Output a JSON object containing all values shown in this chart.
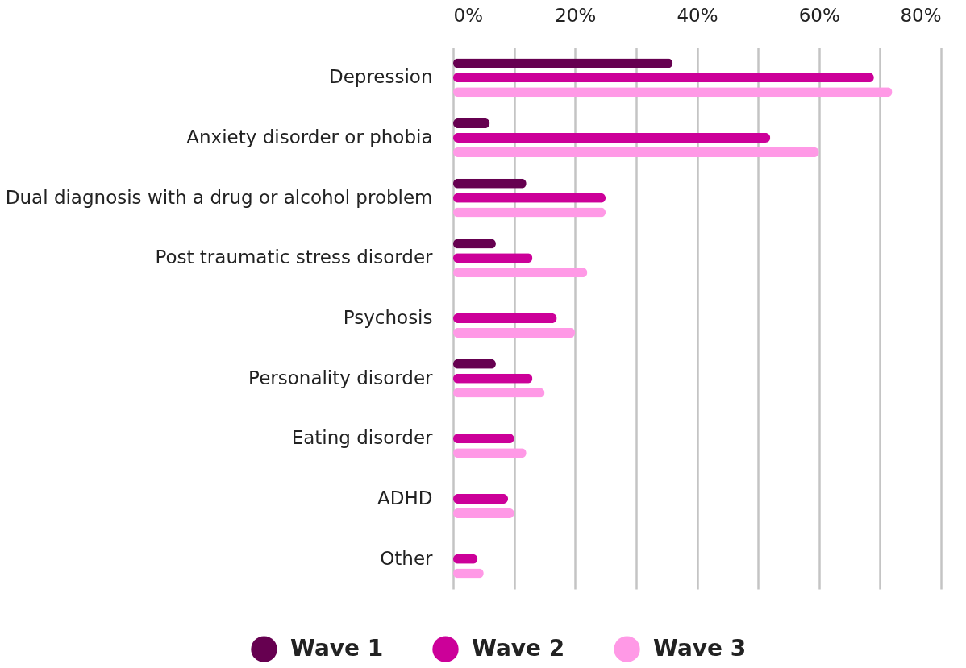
{
  "chart_data": {
    "type": "bar",
    "orientation": "horizontal",
    "categories": [
      "Depression",
      "Anxiety disorder or phobia",
      "Dual diagnosis with a drug or alcohol problem",
      "Post traumatic stress disorder",
      "Psychosis",
      "Personality disorder",
      "Eating disorder",
      "ADHD",
      "Other"
    ],
    "series": [
      {
        "name": "Wave 1",
        "color": "#660050",
        "values": [
          36,
          6,
          12,
          7,
          null,
          7,
          null,
          null,
          null
        ]
      },
      {
        "name": "Wave 2",
        "color": "#cc0099",
        "values": [
          69,
          52,
          25,
          13,
          17,
          13,
          10,
          9,
          4
        ]
      },
      {
        "name": "Wave 3",
        "color": "#ff99e6",
        "values": [
          72,
          60,
          25,
          22,
          20,
          15,
          12,
          10,
          5
        ]
      }
    ],
    "xlim": [
      0,
      80
    ],
    "xticks": [
      {
        "value": 0,
        "label": "0%"
      },
      {
        "value": 10,
        "label": null
      },
      {
        "value": 20,
        "label": "20%"
      },
      {
        "value": 30,
        "label": null
      },
      {
        "value": 40,
        "label": "40%"
      },
      {
        "value": 50,
        "label": null
      },
      {
        "value": 60,
        "label": "60%"
      },
      {
        "value": 70,
        "label": null
      },
      {
        "value": 80,
        "label": "80%"
      }
    ],
    "grid": "x",
    "legend": "bottom"
  }
}
